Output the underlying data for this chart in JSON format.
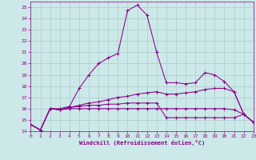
{
  "xlabel": "Windchill (Refroidissement éolien,°C)",
  "xlim": [
    0,
    23
  ],
  "ylim": [
    14,
    25.5
  ],
  "yticks": [
    14,
    15,
    16,
    17,
    18,
    19,
    20,
    21,
    22,
    23,
    24,
    25
  ],
  "xticks": [
    0,
    1,
    2,
    3,
    4,
    5,
    6,
    7,
    8,
    9,
    10,
    11,
    12,
    13,
    14,
    15,
    16,
    17,
    18,
    19,
    20,
    21,
    22,
    23
  ],
  "background_color": "#cce8e8",
  "line_color": "#880088",
  "grid_color": "#aacccc",
  "curves": [
    {
      "x": [
        0,
        1,
        2,
        3,
        4,
        5,
        6,
        7,
        8,
        9,
        10,
        11,
        12,
        13,
        14,
        15,
        16,
        17,
        18,
        19,
        20,
        21,
        22,
        23
      ],
      "y": [
        14.6,
        14.1,
        16.0,
        16.0,
        16.2,
        17.8,
        19.0,
        20.0,
        20.5,
        20.9,
        24.7,
        25.2,
        24.3,
        21.0,
        18.3,
        18.3,
        18.2,
        18.3,
        19.2,
        19.0,
        18.4,
        17.5,
        15.5,
        14.8
      ]
    },
    {
      "x": [
        0,
        1,
        2,
        3,
        4,
        5,
        6,
        7,
        8,
        9,
        10,
        11,
        12,
        13,
        14,
        15,
        16,
        17,
        18,
        19,
        20,
        21,
        22,
        23
      ],
      "y": [
        14.6,
        14.1,
        16.0,
        15.9,
        16.1,
        16.3,
        16.5,
        16.6,
        16.8,
        17.0,
        17.1,
        17.3,
        17.4,
        17.5,
        17.3,
        17.3,
        17.4,
        17.5,
        17.7,
        17.8,
        17.8,
        17.5,
        15.5,
        14.8
      ]
    },
    {
      "x": [
        0,
        1,
        2,
        3,
        4,
        5,
        6,
        7,
        8,
        9,
        10,
        11,
        12,
        13,
        14,
        15,
        16,
        17,
        18,
        19,
        20,
        21,
        22,
        23
      ],
      "y": [
        14.6,
        14.1,
        16.0,
        15.9,
        16.1,
        16.2,
        16.3,
        16.3,
        16.4,
        16.4,
        16.5,
        16.5,
        16.5,
        16.5,
        15.2,
        15.2,
        15.2,
        15.2,
        15.2,
        15.2,
        15.2,
        15.2,
        15.5,
        14.8
      ]
    },
    {
      "x": [
        0,
        1,
        2,
        3,
        4,
        5,
        6,
        7,
        8,
        9,
        10,
        11,
        12,
        13,
        14,
        15,
        16,
        17,
        18,
        19,
        20,
        21,
        22,
        23
      ],
      "y": [
        14.6,
        14.1,
        16.0,
        15.9,
        16.0,
        16.0,
        16.0,
        16.0,
        16.0,
        16.0,
        16.0,
        16.0,
        16.0,
        16.0,
        16.0,
        16.0,
        16.0,
        16.0,
        16.0,
        16.0,
        16.0,
        15.9,
        15.5,
        14.8
      ]
    }
  ]
}
